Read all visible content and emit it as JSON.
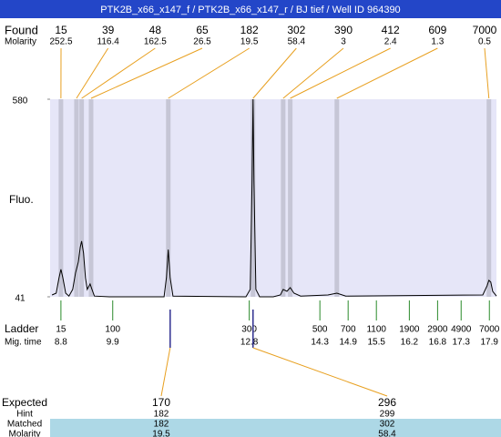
{
  "chart_data": {
    "type": "line",
    "title": "PTK2B_x66_x147_f / PTK2B_x66_x147_r / BJ tief / Well ID 964390",
    "y_label": "Fluo.",
    "ylim": [
      41,
      580
    ],
    "yticks": [
      41,
      580
    ],
    "xlim": [
      8.57,
      18.05
    ],
    "color": "#000000",
    "x": [
      8.61,
      8.7,
      8.76,
      8.8,
      8.84,
      8.9,
      8.97,
      9.05,
      9.11,
      9.17,
      9.21,
      9.24,
      9.28,
      9.32,
      9.36,
      9.42,
      9.46,
      9.51,
      9.83,
      10.99,
      11.04,
      11.08,
      11.12,
      11.18,
      12.73,
      12.82,
      12.86,
      12.88,
      12.9,
      12.94,
      13.02,
      13.31,
      13.46,
      13.52,
      13.6,
      13.67,
      13.75,
      13.89,
      14.47,
      14.66,
      14.85,
      17.76,
      17.85,
      17.89,
      17.93,
      17.97,
      18.05
    ],
    "values": [
      46,
      51,
      93,
      116,
      93,
      51,
      43,
      61,
      106,
      136,
      176,
      193,
      160,
      93,
      61,
      76,
      61,
      43,
      41,
      41,
      93,
      170,
      93,
      43,
      41,
      61,
      354,
      580,
      354,
      61,
      41,
      41,
      46,
      61,
      56,
      66,
      51,
      43,
      46,
      51,
      43,
      46,
      71,
      86,
      81,
      56,
      43
    ],
    "found": {
      "label": "Found",
      "sizes": [
        15,
        39,
        48,
        65,
        182,
        302,
        390,
        412,
        609,
        7000
      ],
      "molarity_label": "Molarity",
      "molarity": [
        252.5,
        116.4,
        162.5,
        26.5,
        19.5,
        58.4,
        3,
        2.4,
        1.3,
        0.5
      ],
      "times": [
        8.8,
        9.13,
        9.24,
        9.44,
        11.08,
        12.88,
        13.52,
        13.67,
        14.66,
        17.89
      ]
    },
    "ladder": {
      "label": "Ladder",
      "sizes": [
        15,
        100,
        300,
        500,
        700,
        1100,
        1900,
        2900,
        4900,
        7000
      ],
      "time_label": "Mig. time",
      "times": [
        8.8,
        9.9,
        12.8,
        14.3,
        14.9,
        15.5,
        16.2,
        16.8,
        17.3,
        17.9
      ]
    },
    "expected": {
      "label": "Expected",
      "sizes": [
        170,
        296
      ],
      "times": [
        11.12,
        12.88
      ],
      "hint_label": "Hint",
      "hint": [
        182,
        299
      ],
      "matched_label": "Matched",
      "matched": [
        182,
        302
      ],
      "molarity_label": "Molarity",
      "molarity": [
        19.5,
        58.4
      ]
    }
  }
}
